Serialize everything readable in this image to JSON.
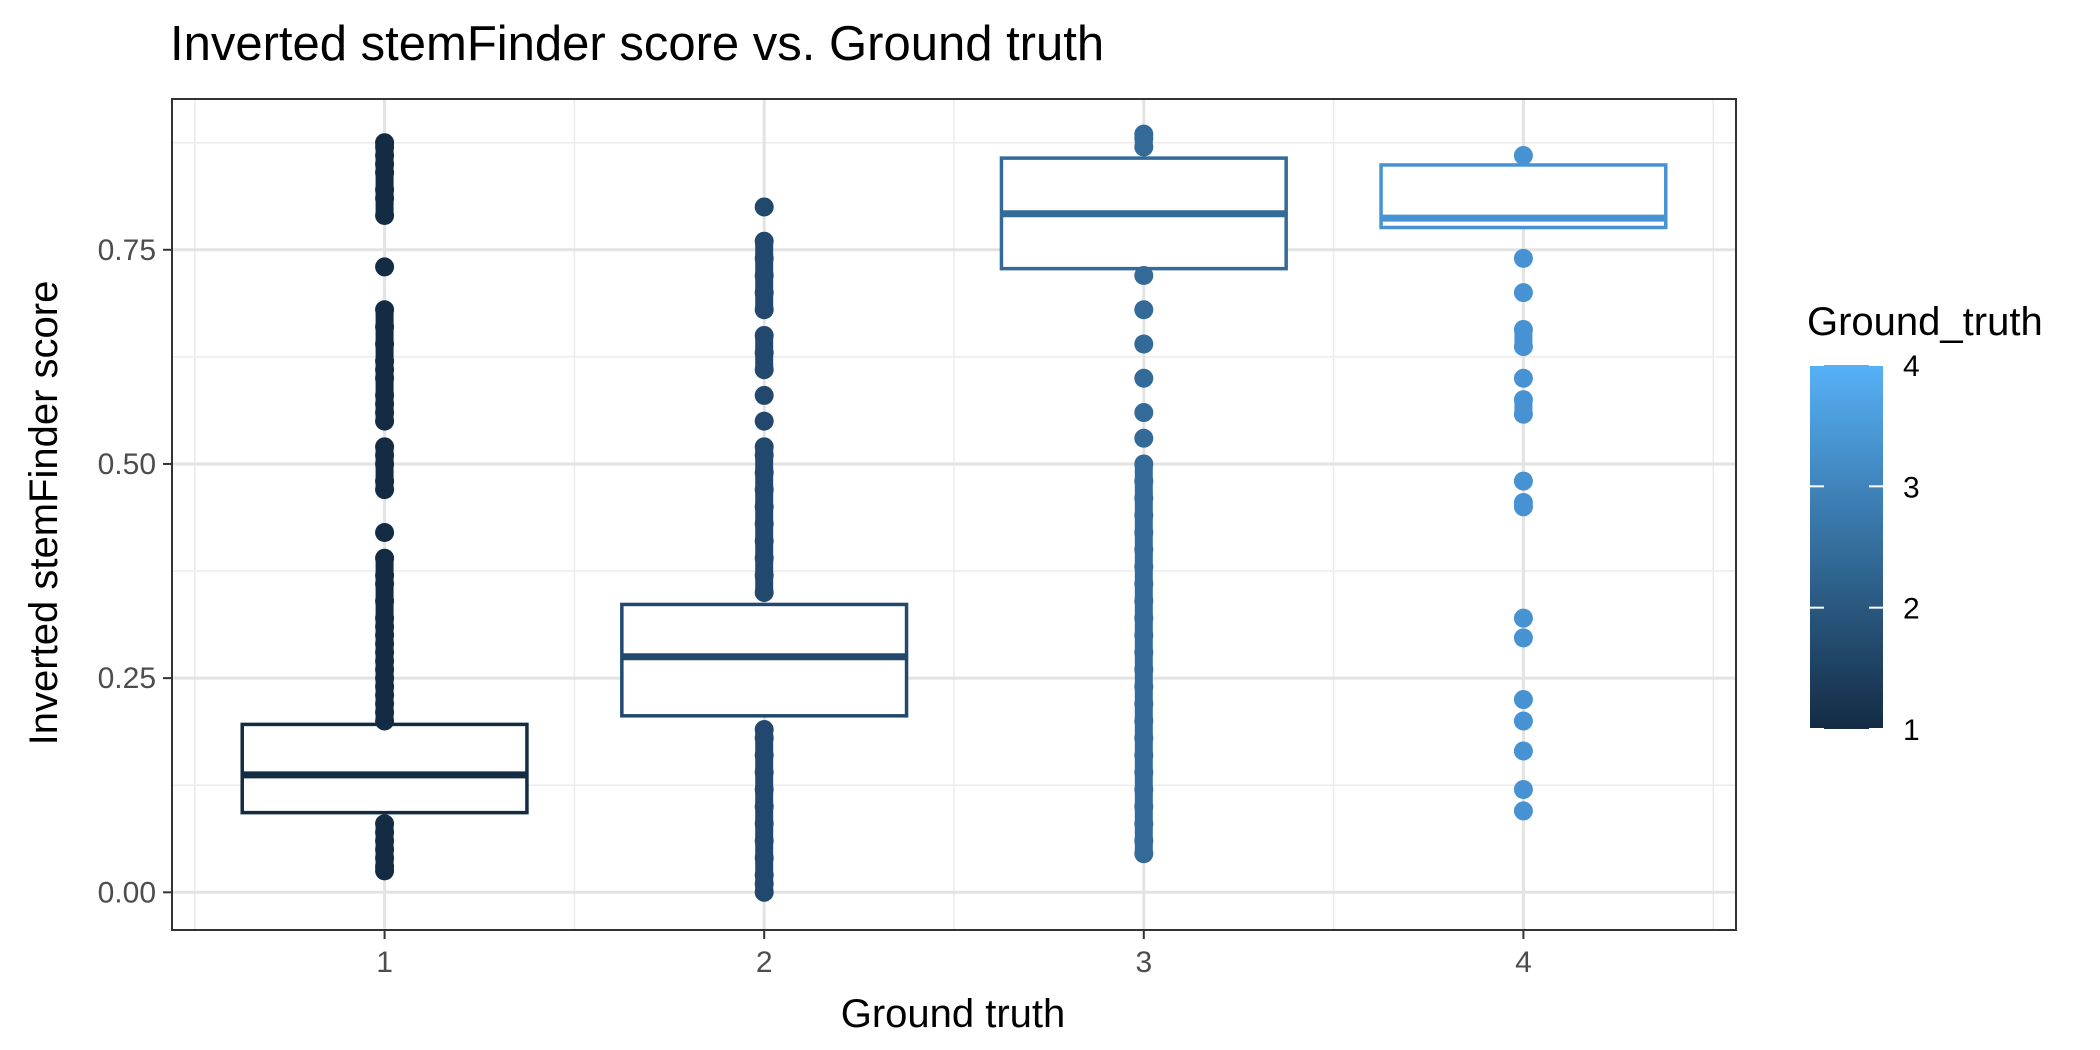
{
  "chart_data": {
    "type": "box",
    "title": "Inverted stemFinder score vs. Ground truth",
    "xlabel": "Ground truth",
    "ylabel": "Inverted stemFinder score",
    "categories": [
      "1",
      "2",
      "3",
      "4"
    ],
    "xlim": [
      0.44,
      4.56
    ],
    "ylim": [
      -0.044,
      0.926
    ],
    "yticks": [
      0.0,
      0.25,
      0.5,
      0.75
    ],
    "ytick_labels": [
      "0.00",
      "0.25",
      "0.50",
      "0.75"
    ],
    "grid": true,
    "color_scale": {
      "title": "Ground_truth",
      "low_color": "#132B43",
      "high_color": "#56B1F7",
      "range": [
        1,
        4
      ],
      "breaks": [
        1,
        2,
        3,
        4
      ],
      "break_labels": [
        "1",
        "2",
        "3",
        "4"
      ],
      "legend_position": "right"
    },
    "boxes": [
      {
        "category": "1",
        "lower": 0.093,
        "q1": 0.093,
        "median": 0.137,
        "q3": 0.196,
        "upper": 0.196,
        "color": "#132B43",
        "points": [
          0.025,
          0.03,
          0.04,
          0.05,
          0.06,
          0.07,
          0.08,
          0.2,
          0.21,
          0.22,
          0.23,
          0.24,
          0.25,
          0.26,
          0.27,
          0.28,
          0.29,
          0.3,
          0.31,
          0.32,
          0.34,
          0.36,
          0.37,
          0.39,
          0.42,
          0.47,
          0.48,
          0.5,
          0.51,
          0.52,
          0.55,
          0.56,
          0.57,
          0.58,
          0.6,
          0.61,
          0.62,
          0.64,
          0.66,
          0.68,
          0.73,
          0.79,
          0.81,
          0.82,
          0.84,
          0.85,
          0.86,
          0.87,
          0.875
        ]
      },
      {
        "category": "2",
        "lower": 0.206,
        "q1": 0.206,
        "median": 0.275,
        "q3": 0.336,
        "upper": 0.336,
        "color": "#23486D",
        "points": [
          0.0,
          0.01,
          0.02,
          0.04,
          0.06,
          0.08,
          0.1,
          0.12,
          0.14,
          0.16,
          0.18,
          0.19,
          0.35,
          0.37,
          0.39,
          0.41,
          0.43,
          0.45,
          0.47,
          0.49,
          0.51,
          0.52,
          0.55,
          0.58,
          0.61,
          0.63,
          0.65,
          0.68,
          0.7,
          0.72,
          0.74,
          0.76,
          0.8
        ]
      },
      {
        "category": "3",
        "lower": 0.728,
        "q1": 0.728,
        "median": 0.792,
        "q3": 0.857,
        "upper": 0.857,
        "color": "#336A98",
        "points": [
          0.045,
          0.06,
          0.08,
          0.1,
          0.12,
          0.14,
          0.16,
          0.18,
          0.2,
          0.22,
          0.24,
          0.26,
          0.28,
          0.3,
          0.32,
          0.34,
          0.36,
          0.38,
          0.4,
          0.42,
          0.44,
          0.46,
          0.48,
          0.5,
          0.53,
          0.56,
          0.6,
          0.64,
          0.68,
          0.72,
          0.87,
          0.88,
          0.885
        ]
      },
      {
        "category": "4",
        "lower": 0.776,
        "q1": 0.776,
        "median": 0.787,
        "q3": 0.849,
        "upper": 0.849,
        "color": "#4692D2",
        "points": [
          0.095,
          0.12,
          0.165,
          0.2,
          0.225,
          0.297,
          0.32,
          0.45,
          0.455,
          0.48,
          0.558,
          0.575,
          0.6,
          0.637,
          0.657,
          0.7,
          0.74,
          0.86
        ]
      }
    ]
  }
}
